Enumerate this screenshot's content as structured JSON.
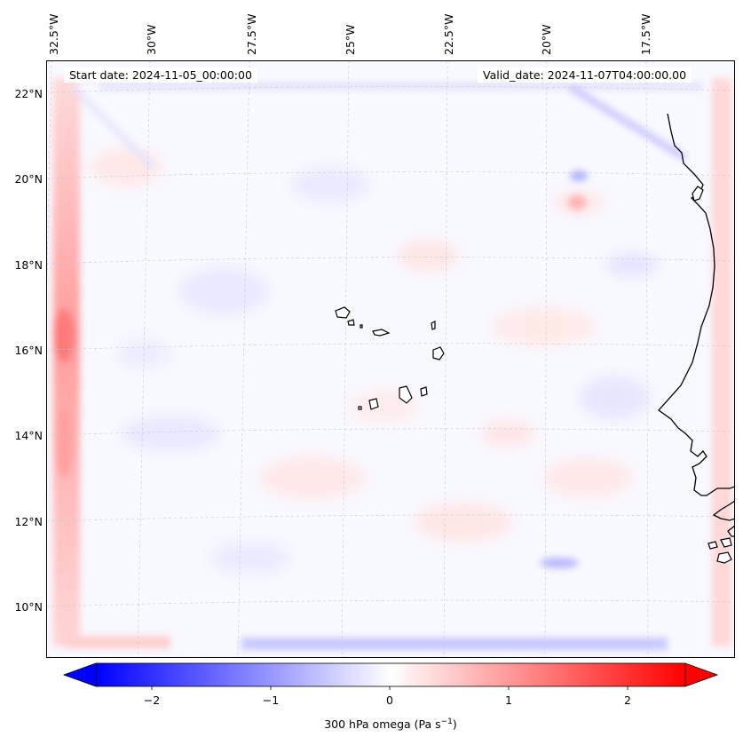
{
  "map": {
    "title_left": "Start date: 2024-11-05_00:00:00",
    "title_right": "Valid_date: 2024-11-07T04:00:00.00",
    "lon_labels": [
      "32.5°W",
      "30°W",
      "27.5°W",
      "25°W",
      "22.5°W",
      "20°W",
      "17.5°W"
    ],
    "lat_labels": [
      "22°N",
      "20°N",
      "18°N",
      "16°N",
      "14°N",
      "12°N",
      "10°N"
    ],
    "field": "300 hPa omega",
    "gridlines": true
  },
  "colorbar": {
    "ticks": [
      "−2",
      "−1",
      "0",
      "1",
      "2"
    ],
    "label": "300 hPa omega (Pa s",
    "label_exp": "−1",
    "label_close": ")",
    "min_color": "#0000ff",
    "mid_color": "#ffffff",
    "max_color": "#ff0000",
    "extend": "both"
  }
}
